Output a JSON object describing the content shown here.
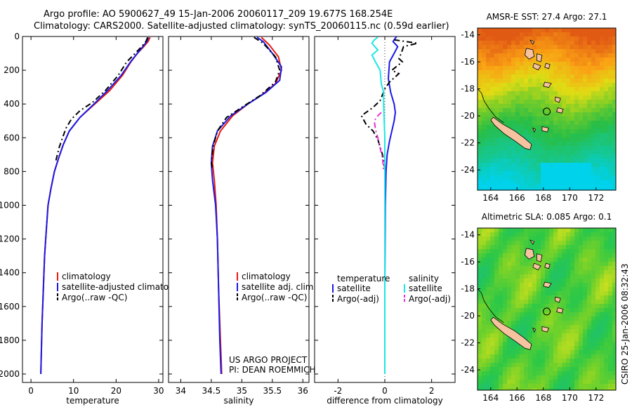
{
  "header": {
    "line1": "Argo profile: AO 5900627_49 15-Jan-2006 20060117_209 19.677S 168.254E",
    "line2": "Climatology: CARS2000. Satellite-adjusted climatology: synTS_20060115.nc (0.59d earlier)"
  },
  "side_label": "CSIRO 25-Jan-2006 08:32:43",
  "credit": {
    "line1": "US ARGO PROJECT",
    "line2": "PI: DEAN ROEMMICH"
  },
  "colors": {
    "red": "#e8190f",
    "blue": "#1a1ae6",
    "black": "#000000",
    "cyan": "#1ee6e6",
    "magenta": "#e632d2"
  },
  "chart_data": [
    {
      "id": "temperature",
      "type": "line",
      "xlabel": "temperature",
      "ylabel": "",
      "xlim": [
        -2,
        31
      ],
      "ylim": [
        2050,
        0
      ],
      "xticks": [
        0,
        10,
        20,
        30
      ],
      "yticks": [
        0,
        200,
        400,
        600,
        800,
        1000,
        1200,
        1400,
        1600,
        1800,
        2000
      ],
      "legend": [
        "climatology",
        "satellite-adjusted climatology",
        "Argo(..raw -QC)"
      ],
      "series": [
        {
          "name": "climatology",
          "color": "red",
          "dash": "",
          "points": [
            [
              28.0,
              5
            ],
            [
              27.5,
              30
            ],
            [
              26.5,
              60
            ],
            [
              25.0,
              100
            ],
            [
              23.5,
              150
            ],
            [
              21.5,
              230
            ],
            [
              18.5,
              320
            ],
            [
              15.0,
              400
            ],
            [
              11.5,
              480
            ],
            [
              9.0,
              560
            ],
            [
              7.6,
              640
            ],
            [
              6.5,
              720
            ],
            [
              5.5,
              800
            ],
            [
              4.7,
              900
            ],
            [
              4.0,
              1000
            ],
            [
              3.6,
              1150
            ],
            [
              3.2,
              1300
            ],
            [
              2.9,
              1500
            ],
            [
              2.6,
              1700
            ],
            [
              2.4,
              1900
            ],
            [
              2.3,
              2000
            ]
          ]
        },
        {
          "name": "satellite-adjusted climatology",
          "color": "blue",
          "dash": "",
          "points": [
            [
              27.6,
              5
            ],
            [
              27.2,
              30
            ],
            [
              26.3,
              60
            ],
            [
              25.0,
              100
            ],
            [
              23.4,
              150
            ],
            [
              21.2,
              230
            ],
            [
              18.0,
              320
            ],
            [
              14.8,
              400
            ],
            [
              11.5,
              480
            ],
            [
              9.0,
              560
            ],
            [
              7.6,
              640
            ],
            [
              6.5,
              720
            ],
            [
              5.5,
              800
            ],
            [
              4.7,
              900
            ],
            [
              4.0,
              1000
            ],
            [
              3.6,
              1150
            ],
            [
              3.2,
              1300
            ],
            [
              2.9,
              1500
            ],
            [
              2.6,
              1700
            ],
            [
              2.4,
              1900
            ],
            [
              2.3,
              2000
            ]
          ]
        },
        {
          "name": "Argo(..raw -QC)",
          "color": "black",
          "dash": "8,4,2,4",
          "points": [
            [
              27.4,
              5
            ],
            [
              27.0,
              30
            ],
            [
              26.0,
              60
            ],
            [
              24.5,
              100
            ],
            [
              22.5,
              150
            ],
            [
              20.5,
              230
            ],
            [
              17.5,
              320
            ],
            [
              14.5,
              390
            ],
            [
              11.5,
              440
            ],
            [
              9.5,
              490
            ],
            [
              8.3,
              540
            ],
            [
              7.4,
              600
            ],
            [
              6.6,
              660
            ],
            [
              5.8,
              740
            ]
          ]
        }
      ]
    },
    {
      "id": "salinity",
      "type": "line",
      "xlabel": "salinity",
      "ylabel": "",
      "xlim": [
        33.8,
        36.1
      ],
      "ylim": [
        2050,
        0
      ],
      "xticks": [
        34,
        34.5,
        35,
        35.5,
        36
      ],
      "yticks": [
        0,
        200,
        400,
        600,
        800,
        1000,
        1200,
        1400,
        1600,
        1800,
        2000
      ],
      "legend": [
        "climatology",
        "satellite adj. clim.",
        "Argo(..raw -QC)"
      ],
      "series": [
        {
          "name": "climatology",
          "color": "red",
          "dash": "",
          "points": [
            [
              35.32,
              5
            ],
            [
              35.45,
              50
            ],
            [
              35.6,
              120
            ],
            [
              35.65,
              200
            ],
            [
              35.55,
              280
            ],
            [
              35.35,
              340
            ],
            [
              35.1,
              400
            ],
            [
              34.85,
              470
            ],
            [
              34.65,
              560
            ],
            [
              34.55,
              650
            ],
            [
              34.52,
              750
            ],
            [
              34.55,
              850
            ],
            [
              34.58,
              1000
            ],
            [
              34.6,
              1200
            ],
            [
              34.62,
              1500
            ],
            [
              34.65,
              1800
            ],
            [
              34.67,
              2000
            ]
          ]
        },
        {
          "name": "satellite adj. clim.",
          "color": "blue",
          "dash": "",
          "points": [
            [
              35.25,
              5
            ],
            [
              35.35,
              30
            ],
            [
              35.5,
              100
            ],
            [
              35.65,
              180
            ],
            [
              35.62,
              260
            ],
            [
              35.4,
              330
            ],
            [
              35.1,
              400
            ],
            [
              34.82,
              470
            ],
            [
              34.6,
              560
            ],
            [
              34.52,
              650
            ],
            [
              34.5,
              750
            ],
            [
              34.52,
              850
            ],
            [
              34.57,
              1000
            ],
            [
              34.6,
              1200
            ],
            [
              34.62,
              1500
            ],
            [
              34.64,
              1800
            ],
            [
              34.66,
              2000
            ]
          ]
        },
        {
          "name": "Argo(..raw -QC)",
          "color": "black",
          "dash": "8,4,2,4",
          "points": [
            [
              35.2,
              5
            ],
            [
              35.35,
              40
            ],
            [
              35.55,
              120
            ],
            [
              35.62,
              200
            ],
            [
              35.55,
              270
            ],
            [
              35.3,
              350
            ],
            [
              35.0,
              420
            ],
            [
              34.75,
              480
            ],
            [
              34.6,
              560
            ],
            [
              34.53,
              650
            ],
            [
              34.5,
              740
            ],
            [
              34.52,
              790
            ]
          ]
        }
      ]
    },
    {
      "id": "difference",
      "type": "line",
      "xlabel": "difference from climatology",
      "ylabel": "",
      "xlim": [
        -3,
        3
      ],
      "ylim": [
        2050,
        0
      ],
      "xticks": [
        -2,
        0,
        2
      ],
      "yticks": [
        0,
        200,
        400,
        600,
        800,
        1000,
        1200,
        1400,
        1600,
        1800,
        2000
      ],
      "legend_title_left": "temperature",
      "legend_title_right": "salinity",
      "legend": [
        "satellite",
        "Argo(-adj)",
        "satellite",
        "Argo(-adj)"
      ],
      "series": [
        {
          "name": "temperature satellite",
          "color": "blue",
          "dash": "",
          "points": [
            [
              0.5,
              0
            ],
            [
              0.35,
              30
            ],
            [
              0.55,
              60
            ],
            [
              0.4,
              100
            ],
            [
              0.2,
              150
            ],
            [
              0.15,
              250
            ],
            [
              0.25,
              330
            ],
            [
              0.4,
              400
            ],
            [
              0.45,
              450
            ],
            [
              0.4,
              500
            ],
            [
              0.3,
              560
            ],
            [
              0.2,
              620
            ],
            [
              0.1,
              700
            ],
            [
              0.05,
              800
            ],
            [
              0.02,
              1000
            ],
            [
              0.0,
              1500
            ],
            [
              0.0,
              2000
            ]
          ]
        },
        {
          "name": "temperature Argo(-adj)",
          "color": "black",
          "dash": "8,4,2,4",
          "points": [
            [
              0.4,
              20
            ],
            [
              0.9,
              30
            ],
            [
              1.4,
              40
            ],
            [
              0.8,
              60
            ],
            [
              0.7,
              100
            ],
            [
              0.6,
              130
            ],
            [
              0.75,
              150
            ],
            [
              0.3,
              200
            ],
            [
              0.6,
              220
            ],
            [
              0.2,
              270
            ],
            [
              0.0,
              310
            ],
            [
              -0.2,
              380
            ],
            [
              -0.5,
              420
            ],
            [
              -1.0,
              470
            ],
            [
              -0.8,
              520
            ],
            [
              -0.5,
              560
            ],
            [
              -0.3,
              610
            ],
            [
              -0.1,
              700
            ],
            [
              0.0,
              780
            ]
          ]
        },
        {
          "name": "salinity satellite",
          "color": "cyan",
          "dash": "",
          "points": [
            [
              -0.3,
              5
            ],
            [
              -0.45,
              20
            ],
            [
              -0.55,
              40
            ],
            [
              -0.3,
              80
            ],
            [
              -0.55,
              110
            ],
            [
              -0.4,
              150
            ],
            [
              -0.2,
              200
            ],
            [
              -0.15,
              280
            ],
            [
              -0.05,
              330
            ],
            [
              -0.05,
              400
            ],
            [
              0.0,
              600
            ],
            [
              0.0,
              1000
            ],
            [
              0.0,
              2000
            ]
          ]
        },
        {
          "name": "salinity Argo(-adj)",
          "color": "magenta",
          "dash": "8,4,2,4",
          "points": [
            [
              -0.15,
              450
            ],
            [
              -0.3,
              470
            ],
            [
              -0.45,
              500
            ],
            [
              -0.4,
              550
            ],
            [
              -0.3,
              600
            ],
            [
              -0.2,
              660
            ],
            [
              -0.1,
              720
            ],
            [
              -0.05,
              790
            ]
          ]
        }
      ]
    },
    {
      "id": "sst_map",
      "type": "heatmap",
      "title": "AMSR-E SST: 27.4 Argo: 27.1",
      "xlim": [
        163,
        173.5
      ],
      "ylim": [
        -25.5,
        -13.5
      ],
      "xticks": [
        164,
        166,
        168,
        170,
        172
      ],
      "yticks": [
        -14,
        -16,
        -18,
        -20,
        -22,
        -24
      ],
      "argo_position": [
        168.254,
        -19.677
      ]
    },
    {
      "id": "sla_map",
      "type": "heatmap",
      "title": "Altimetric SLA: 0.085 Argo: 0.1",
      "xlim": [
        163,
        173.5
      ],
      "ylim": [
        -25.5,
        -13.5
      ],
      "xticks": [
        164,
        166,
        168,
        170,
        172
      ],
      "yticks": [
        -14,
        -16,
        -18,
        -20,
        -22,
        -24
      ],
      "argo_position": [
        168.254,
        -19.677
      ]
    }
  ]
}
